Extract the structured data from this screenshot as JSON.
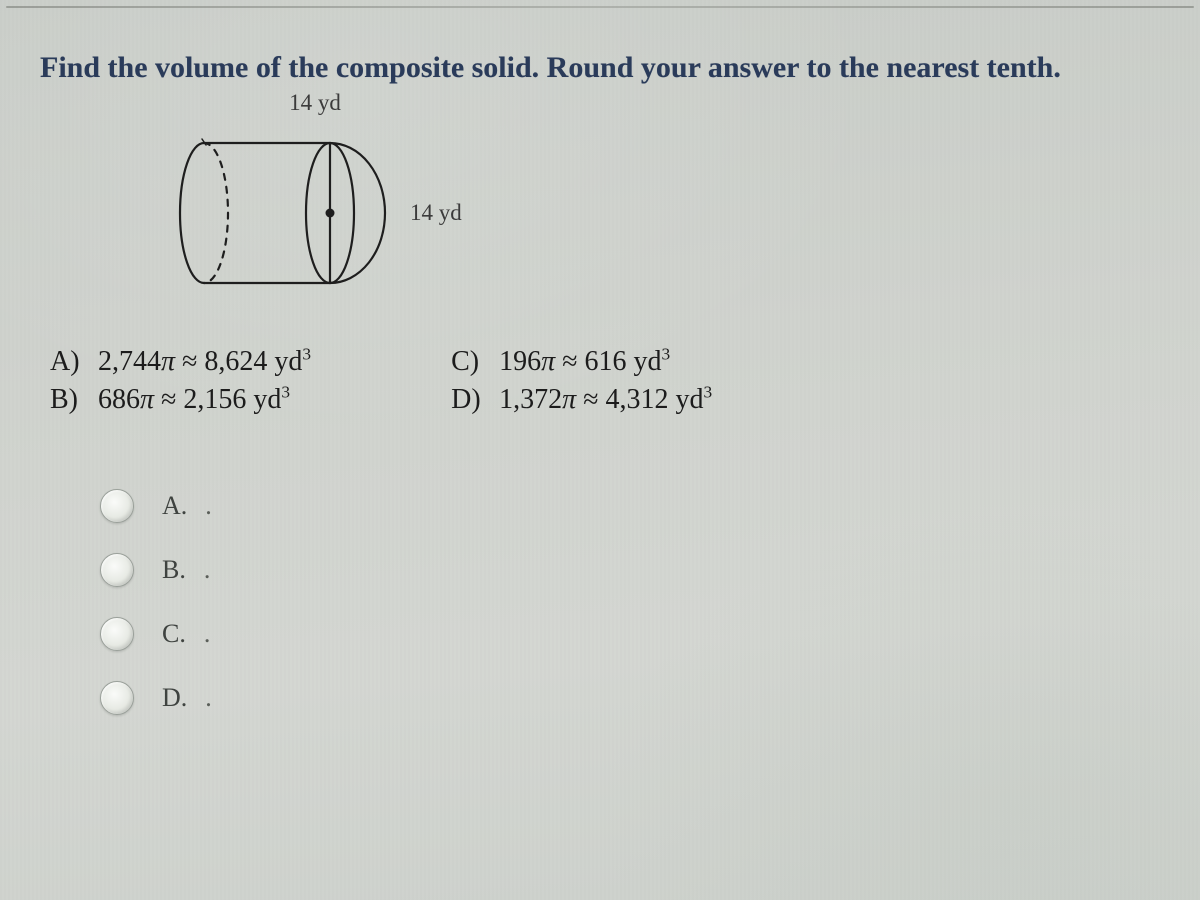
{
  "prompt": "Find the volume of the composite solid. Round your answer to the nearest tenth.",
  "figure": {
    "top_label": "14 yd",
    "side_label": "14 yd",
    "stroke": "#1e1e1e",
    "stroke_width": 2.2,
    "dot_fill": "#1e1e1e"
  },
  "answers": {
    "A": {
      "letter": "A)",
      "coeff": "2,744",
      "approx": "8,624",
      "unit": "yd",
      "exp": "3"
    },
    "B": {
      "letter": "B)",
      "coeff": "686",
      "approx": "2,156",
      "unit": "yd",
      "exp": "3"
    },
    "C": {
      "letter": "C)",
      "coeff": "196",
      "approx": "616",
      "unit": "yd",
      "exp": "3"
    },
    "D": {
      "letter": "D)",
      "coeff": "1,372",
      "approx": "4,312",
      "unit": "yd",
      "exp": "3"
    }
  },
  "choices": {
    "a": "A.",
    "b": "B.",
    "c": "C.",
    "d": "D."
  },
  "colors": {
    "prompt": "#2a3b5a",
    "text": "#1c1c1c",
    "bg": "#d0d3ce"
  }
}
